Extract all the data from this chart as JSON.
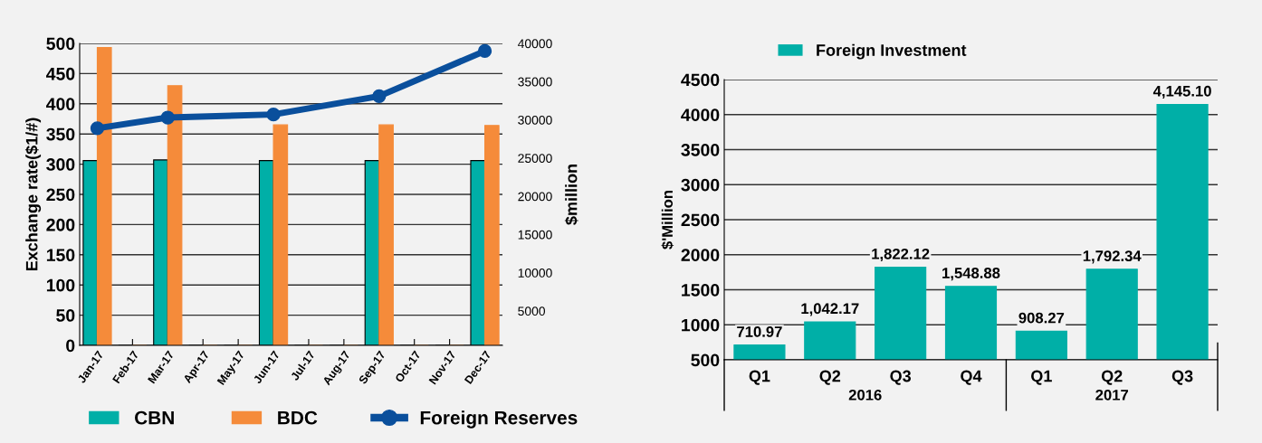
{
  "chart_data": [
    {
      "type": "bar",
      "ylabel": "Exchange rate($1/#)",
      "y2label": "$million",
      "categories": [
        "Jan-17",
        "Feb-17",
        "Mar-17",
        "Apr-17",
        "May-17",
        "Jun-17",
        "Jul-17",
        "Aug-17",
        "Sep-17",
        "Oct-17",
        "Nov-17",
        "Dec-17"
      ],
      "series": [
        {
          "name": "CBN",
          "color": "#00afa7",
          "values": [
            306,
            0,
            307,
            0,
            0,
            306,
            0,
            0,
            306,
            0,
            0,
            306
          ]
        },
        {
          "name": "BDC",
          "color": "#f58b3a",
          "values": [
            493,
            0,
            430,
            0,
            0,
            365,
            0,
            0,
            365,
            0,
            0,
            364
          ]
        },
        {
          "name": "Foreign Reserves",
          "type": "line",
          "axis": "y2",
          "color": "#0a4f9c",
          "marker": "circle",
          "values": [
            28900,
            null,
            30300,
            null,
            null,
            30700,
            null,
            null,
            33100,
            null,
            null,
            39000
          ]
        }
      ],
      "ylim": [
        0,
        500
      ],
      "yticks": [
        0,
        50,
        100,
        150,
        200,
        250,
        300,
        350,
        400,
        450,
        500
      ],
      "y2lim": [
        500,
        40000
      ],
      "y2ticks": [
        5000,
        10000,
        15000,
        20000,
        25000,
        30000,
        35000,
        40000
      ],
      "grid": "y",
      "legend": "bottom"
    },
    {
      "type": "bar",
      "ylabel": "$'Million",
      "categories": [
        "Q1",
        "Q2",
        "Q3",
        "Q4",
        "Q1",
        "Q2",
        "Q3"
      ],
      "series": [
        {
          "name": "Foreign Investment",
          "color": "#00afa7",
          "values": [
            710.97,
            1042.17,
            1822.12,
            1548.88,
            908.27,
            1792.34,
            4145.1
          ],
          "value_labels": [
            "710.97",
            "1,042.17",
            "1,822.12",
            "1,548.88",
            "908.27",
            "1,792.34",
            "4,145.10"
          ]
        }
      ],
      "ylim": [
        500,
        4500
      ],
      "yticks": [
        500,
        1000,
        1500,
        2000,
        2500,
        3000,
        3500,
        4000,
        4500
      ],
      "annotations": [
        "2016",
        "2017"
      ],
      "grid": "y",
      "legend": "top"
    }
  ]
}
